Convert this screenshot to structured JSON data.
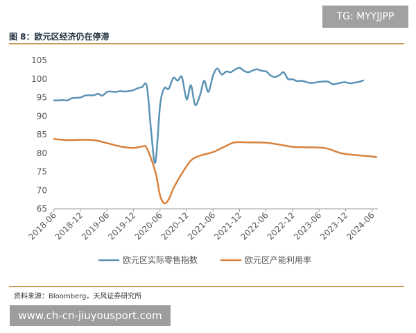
{
  "page": {
    "title": "图 8：欧元区经济仍在停滞",
    "source": "资料来源：Bloomberg，天风证券研究所",
    "watermark_top": "TG: MYYJJPP",
    "watermark_bottom": "www.ch-cn-jiuyousport.com"
  },
  "colors": {
    "accent_rule": "#c89a55",
    "series_retail": "#5b93b5",
    "series_capacity": "#d9823c"
  },
  "chart_data": {
    "type": "line",
    "title": "图 8：欧元区经济仍在停滞",
    "ylim": [
      65,
      105
    ],
    "yticks": [
      65,
      70,
      75,
      80,
      85,
      90,
      95,
      100,
      105
    ],
    "xlim": [
      2018.42,
      2024.5
    ],
    "xticks": [
      "2018-06",
      "2018-12",
      "2019-06",
      "2019-12",
      "2020-06",
      "2020-12",
      "2021-06",
      "2021-12",
      "2022-06",
      "2022-12",
      "2023-06",
      "2023-12",
      "2024-06"
    ],
    "grid": false,
    "legend": "bottom",
    "series": [
      {
        "name": "欧元区实际零售指数",
        "color": "#5b93b5",
        "points": [
          [
            2018.42,
            94.2
          ],
          [
            2018.5,
            94.2
          ],
          [
            2018.58,
            94.3
          ],
          [
            2018.67,
            94.2
          ],
          [
            2018.75,
            94.8
          ],
          [
            2018.83,
            94.9
          ],
          [
            2018.92,
            95.0
          ],
          [
            2019.0,
            95.5
          ],
          [
            2019.08,
            95.6
          ],
          [
            2019.17,
            95.6
          ],
          [
            2019.25,
            96.0
          ],
          [
            2019.33,
            95.5
          ],
          [
            2019.42,
            96.5
          ],
          [
            2019.5,
            96.6
          ],
          [
            2019.58,
            96.5
          ],
          [
            2019.67,
            96.7
          ],
          [
            2019.75,
            96.6
          ],
          [
            2019.83,
            96.7
          ],
          [
            2019.92,
            97.0
          ],
          [
            2020.0,
            97.5
          ],
          [
            2020.08,
            97.8
          ],
          [
            2020.17,
            98.0
          ],
          [
            2020.25,
            86.0
          ],
          [
            2020.33,
            77.5
          ],
          [
            2020.42,
            93.0
          ],
          [
            2020.5,
            97.5
          ],
          [
            2020.58,
            97.3
          ],
          [
            2020.67,
            100.3
          ],
          [
            2020.75,
            99.5
          ],
          [
            2020.83,
            100.5
          ],
          [
            2020.92,
            94.5
          ],
          [
            2021.0,
            98.3
          ],
          [
            2021.08,
            93.0
          ],
          [
            2021.17,
            95.5
          ],
          [
            2021.25,
            99.5
          ],
          [
            2021.33,
            96.5
          ],
          [
            2021.42,
            101.0
          ],
          [
            2021.5,
            102.8
          ],
          [
            2021.58,
            101.2
          ],
          [
            2021.67,
            102.0
          ],
          [
            2021.75,
            101.8
          ],
          [
            2021.83,
            102.5
          ],
          [
            2021.92,
            103.0
          ],
          [
            2022.0,
            102.2
          ],
          [
            2022.08,
            101.8
          ],
          [
            2022.17,
            102.3
          ],
          [
            2022.25,
            102.6
          ],
          [
            2022.33,
            102.2
          ],
          [
            2022.42,
            102.0
          ],
          [
            2022.5,
            101.0
          ],
          [
            2022.58,
            100.5
          ],
          [
            2022.67,
            101.0
          ],
          [
            2022.75,
            101.8
          ],
          [
            2022.83,
            100.0
          ],
          [
            2022.92,
            99.9
          ],
          [
            2023.0,
            99.4
          ],
          [
            2023.08,
            99.5
          ],
          [
            2023.17,
            99.2
          ],
          [
            2023.25,
            98.9
          ],
          [
            2023.33,
            99.0
          ],
          [
            2023.42,
            99.2
          ],
          [
            2023.5,
            99.3
          ],
          [
            2023.58,
            99.3
          ],
          [
            2023.67,
            98.6
          ],
          [
            2023.75,
            98.7
          ],
          [
            2023.83,
            99.0
          ],
          [
            2023.92,
            99.1
          ],
          [
            2024.0,
            98.8
          ],
          [
            2024.08,
            99.0
          ],
          [
            2024.17,
            99.2
          ],
          [
            2024.25,
            99.6
          ]
        ]
      },
      {
        "name": "欧元区产能利用率",
        "color": "#d9823c",
        "points": [
          [
            2018.42,
            83.8
          ],
          [
            2018.67,
            83.5
          ],
          [
            2018.92,
            83.6
          ],
          [
            2019.17,
            83.5
          ],
          [
            2019.42,
            82.7
          ],
          [
            2019.67,
            81.8
          ],
          [
            2019.92,
            81.4
          ],
          [
            2020.08,
            81.8
          ],
          [
            2020.17,
            81.3
          ],
          [
            2020.33,
            75.0
          ],
          [
            2020.42,
            68.5
          ],
          [
            2020.5,
            66.5
          ],
          [
            2020.58,
            67.5
          ],
          [
            2020.67,
            70.5
          ],
          [
            2020.83,
            74.5
          ],
          [
            2021.0,
            78.0
          ],
          [
            2021.17,
            79.3
          ],
          [
            2021.42,
            80.3
          ],
          [
            2021.67,
            82.0
          ],
          [
            2021.83,
            82.9
          ],
          [
            2022.08,
            82.9
          ],
          [
            2022.42,
            82.8
          ],
          [
            2022.67,
            82.3
          ],
          [
            2022.92,
            81.7
          ],
          [
            2023.17,
            81.6
          ],
          [
            2023.42,
            81.5
          ],
          [
            2023.58,
            81.2
          ],
          [
            2023.83,
            80.0
          ],
          [
            2024.08,
            79.5
          ],
          [
            2024.42,
            79.1
          ],
          [
            2024.5,
            78.9
          ]
        ]
      }
    ]
  }
}
